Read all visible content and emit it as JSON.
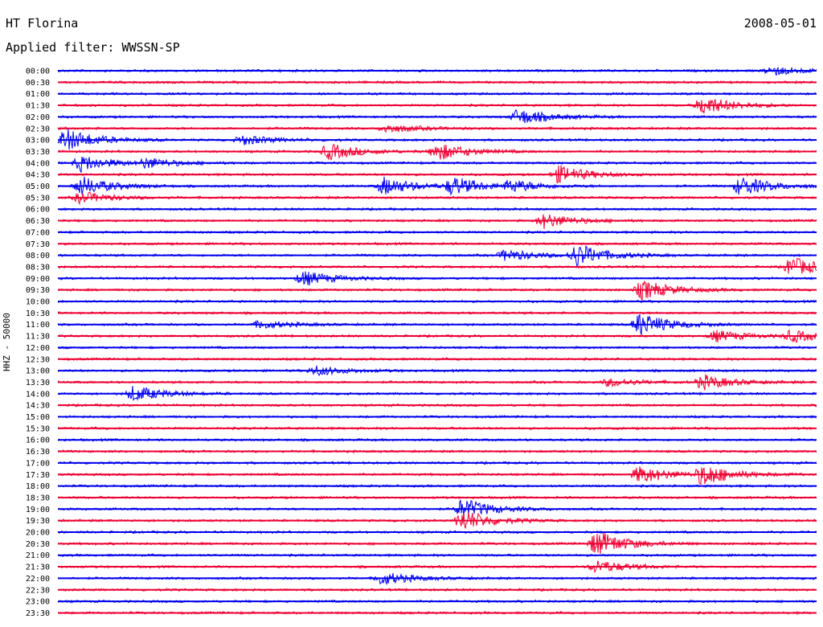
{
  "header": {
    "station": "HT Florina",
    "date": "2008-05-01",
    "filter": "Applied filter: WWSSN-SP",
    "channel": "HHZ - 50000"
  },
  "colors": {
    "even_trace": "#0000ee",
    "odd_trace": "#ee0033",
    "background": "#ffffff"
  },
  "chart_data": {
    "type": "line",
    "title": "HT Florina",
    "subtitle": "Applied filter: WWSSN-SP",
    "ylabel": "HHZ - 50000",
    "xlabel": "",
    "grid": false,
    "trace_labels": [
      "00:00",
      "00:30",
      "01:00",
      "01:30",
      "02:00",
      "02:30",
      "03:00",
      "03:30",
      "04:00",
      "04:30",
      "05:00",
      "05:30",
      "06:00",
      "06:30",
      "07:00",
      "07:30",
      "08:00",
      "08:30",
      "09:00",
      "09:30",
      "10:00",
      "10:30",
      "11:00",
      "11:30",
      "12:00",
      "12:30",
      "13:00",
      "13:30",
      "14:00",
      "14:30",
      "15:00",
      "15:30",
      "16:00",
      "16:30",
      "17:00",
      "17:30",
      "18:00",
      "18:30",
      "19:00",
      "19:30",
      "20:00",
      "20:30",
      "21:00",
      "21:30",
      "22:00",
      "22:30",
      "23:00",
      "23:30"
    ],
    "trace_minutes": 30,
    "events": [
      {
        "trace": "00:00",
        "minute": 28.2,
        "amplitude": 6
      },
      {
        "trace": "01:30",
        "minute": 25.5,
        "amplitude": 12
      },
      {
        "trace": "02:00",
        "minute": 18.2,
        "amplitude": 10
      },
      {
        "trace": "02:30",
        "minute": 13.0,
        "amplitude": 5
      },
      {
        "trace": "03:00",
        "minute": 0.3,
        "amplitude": 14
      },
      {
        "trace": "03:00",
        "minute": 7.3,
        "amplitude": 6
      },
      {
        "trace": "03:30",
        "minute": 10.7,
        "amplitude": 10
      },
      {
        "trace": "03:30",
        "minute": 15.0,
        "amplitude": 11
      },
      {
        "trace": "04:00",
        "minute": 0.9,
        "amplitude": 10
      },
      {
        "trace": "04:00",
        "minute": 3.5,
        "amplitude": 6
      },
      {
        "trace": "04:30",
        "minute": 19.8,
        "amplitude": 11
      },
      {
        "trace": "05:00",
        "minute": 0.9,
        "amplitude": 12
      },
      {
        "trace": "05:00",
        "minute": 12.9,
        "amplitude": 11
      },
      {
        "trace": "05:00",
        "minute": 15.6,
        "amplitude": 11
      },
      {
        "trace": "05:00",
        "minute": 17.9,
        "amplitude": 7
      },
      {
        "trace": "05:00",
        "minute": 27.0,
        "amplitude": 12
      },
      {
        "trace": "05:30",
        "minute": 0.9,
        "amplitude": 7
      },
      {
        "trace": "06:30",
        "minute": 19.2,
        "amplitude": 9
      },
      {
        "trace": "08:00",
        "minute": 17.7,
        "amplitude": 7
      },
      {
        "trace": "08:00",
        "minute": 20.5,
        "amplitude": 14
      },
      {
        "trace": "08:30",
        "minute": 29.0,
        "amplitude": 12
      },
      {
        "trace": "09:00",
        "minute": 9.7,
        "amplitude": 9
      },
      {
        "trace": "09:30",
        "minute": 23.1,
        "amplitude": 12
      },
      {
        "trace": "11:00",
        "minute": 23.0,
        "amplitude": 14
      },
      {
        "trace": "11:00",
        "minute": 8.0,
        "amplitude": 5
      },
      {
        "trace": "11:30",
        "minute": 26.0,
        "amplitude": 7
      },
      {
        "trace": "11:30",
        "minute": 29.0,
        "amplitude": 7
      },
      {
        "trace": "13:00",
        "minute": 10.2,
        "amplitude": 6
      },
      {
        "trace": "13:30",
        "minute": 25.5,
        "amplitude": 9
      },
      {
        "trace": "13:30",
        "minute": 21.8,
        "amplitude": 5
      },
      {
        "trace": "14:00",
        "minute": 3.0,
        "amplitude": 10
      },
      {
        "trace": "17:30",
        "minute": 23.0,
        "amplitude": 11
      },
      {
        "trace": "17:30",
        "minute": 25.5,
        "amplitude": 13
      },
      {
        "trace": "19:00",
        "minute": 16.0,
        "amplitude": 13
      },
      {
        "trace": "19:30",
        "minute": 16.0,
        "amplitude": 13
      },
      {
        "trace": "20:30",
        "minute": 21.3,
        "amplitude": 16
      },
      {
        "trace": "21:30",
        "minute": 21.3,
        "amplitude": 8
      },
      {
        "trace": "22:00",
        "minute": 12.8,
        "amplitude": 8
      }
    ]
  }
}
